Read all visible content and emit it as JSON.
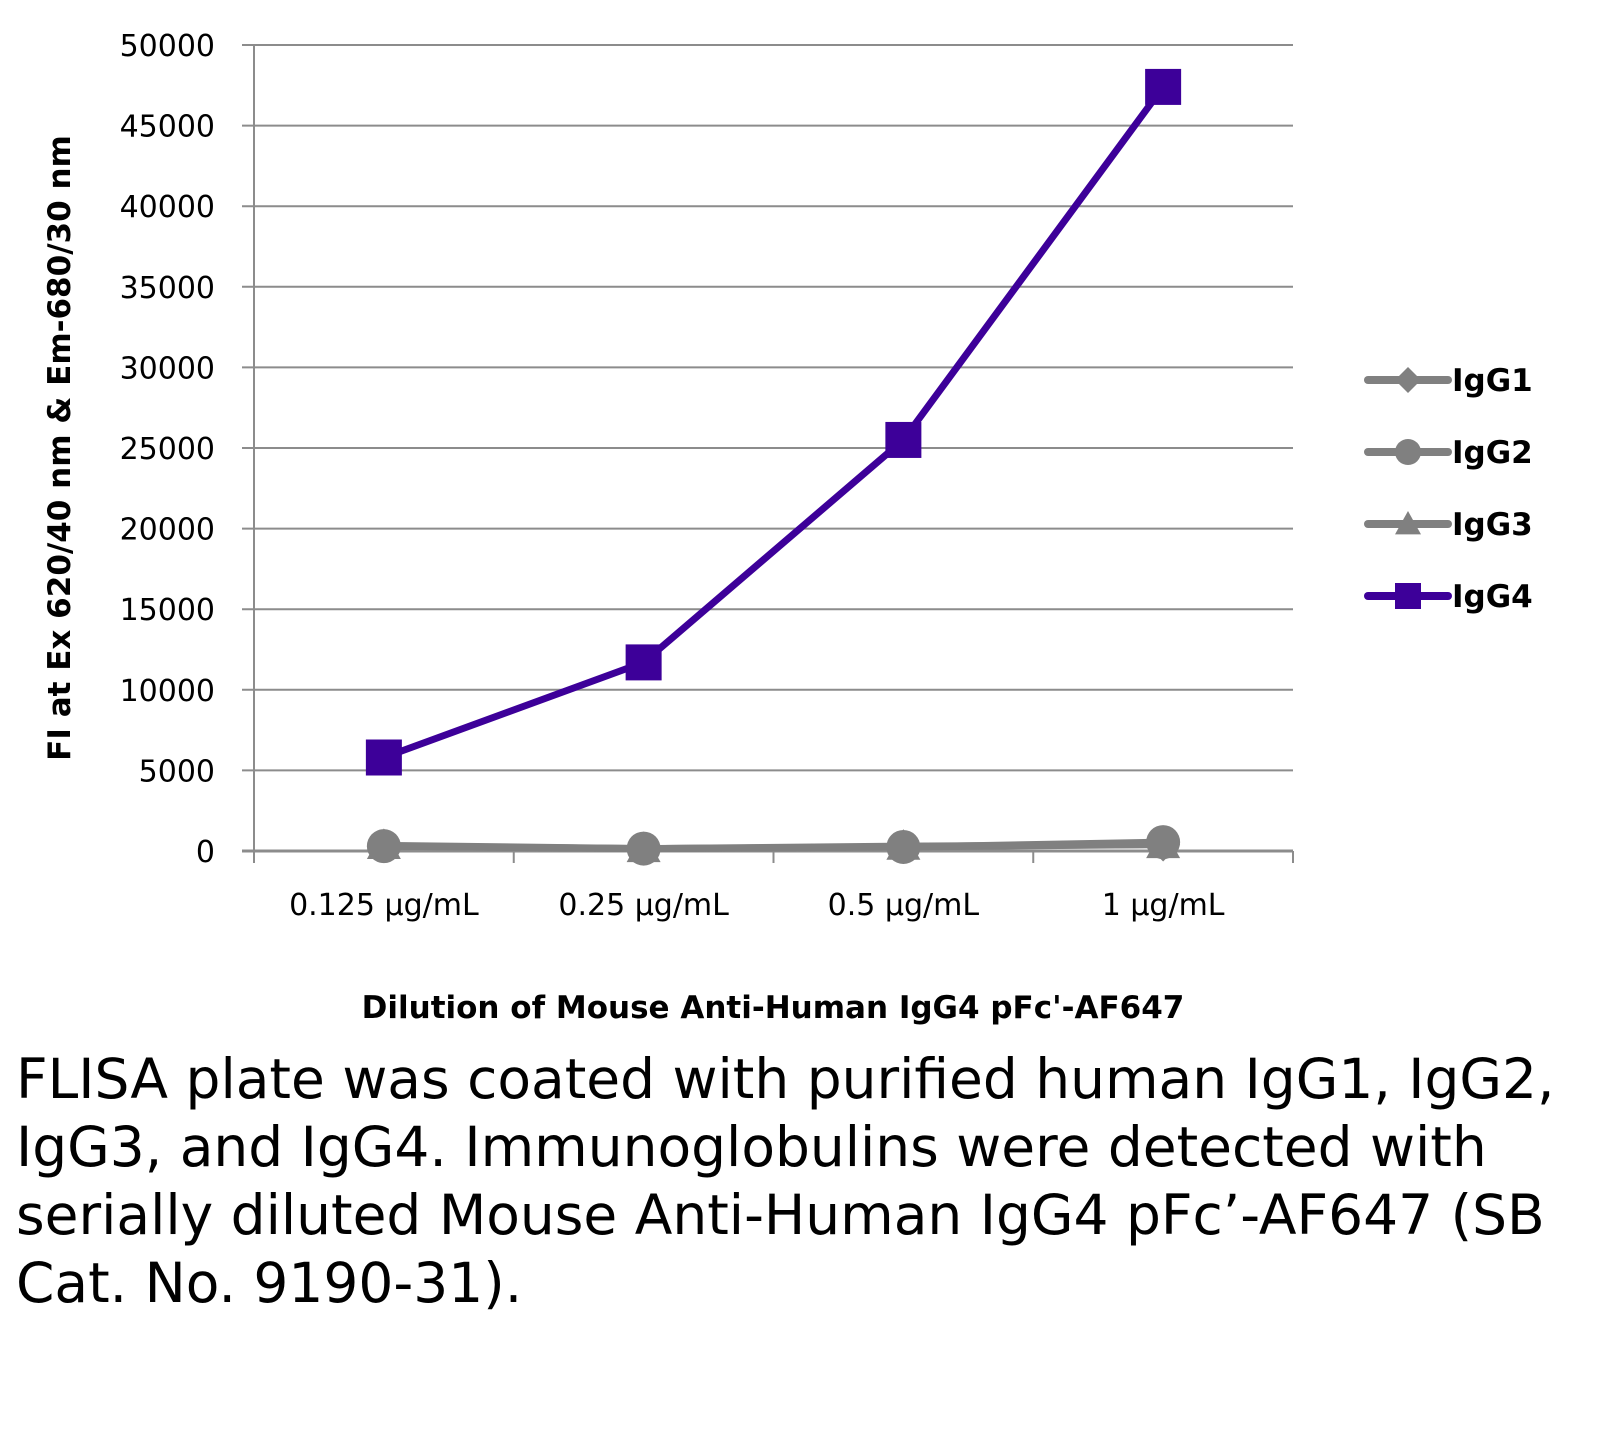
{
  "chart_data": {
    "type": "line",
    "title": "",
    "xlabel": "Dilution of Mouse Anti-Human IgG4 pFc'-AF647",
    "ylabel": "FI at Ex 620/40 nm & Em-680/30 nm",
    "categories": [
      "0.125 µg/mL",
      "0.25 µg/mL",
      "0.5 µg/mL",
      "1 µg/mL"
    ],
    "ylim": [
      0,
      50000
    ],
    "yticks": [
      0,
      5000,
      10000,
      15000,
      20000,
      25000,
      30000,
      35000,
      40000,
      45000,
      50000
    ],
    "grid": true,
    "legend_position": "right",
    "series": [
      {
        "name": "IgG1",
        "marker": "diamond",
        "color": "#808080",
        "values": [
          300,
          150,
          250,
          400
        ]
      },
      {
        "name": "IgG2",
        "marker": "circle",
        "color": "#808080",
        "values": [
          300,
          150,
          250,
          550
        ]
      },
      {
        "name": "IgG3",
        "marker": "triangle",
        "color": "#808080",
        "values": [
          350,
          150,
          300,
          400
        ]
      },
      {
        "name": "IgG4",
        "marker": "square",
        "color": "#3d0099",
        "values": [
          5800,
          11700,
          25500,
          47400
        ]
      }
    ]
  },
  "caption": "FLISA plate was coated with purified human IgG1, IgG2, IgG3, and IgG4.  Immunoglobulins were detected with serially diluted Mouse Anti-Human IgG4 pFc’-AF647 (SB Cat. No. 9190-31)."
}
